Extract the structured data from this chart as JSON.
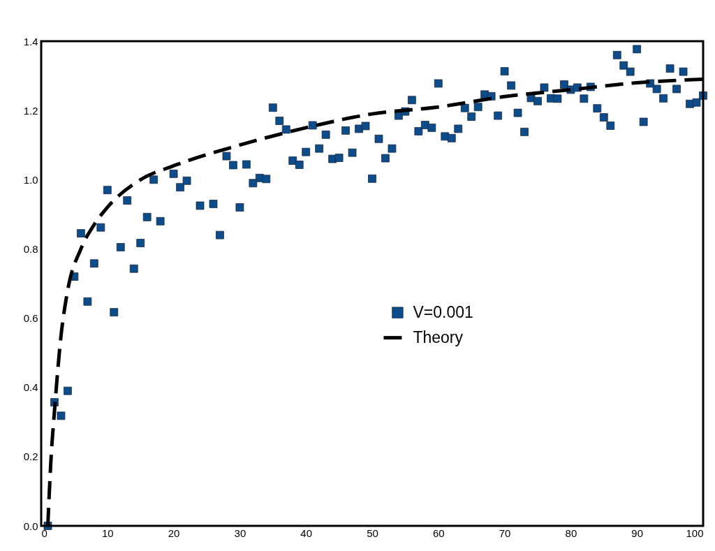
{
  "chart_data": {
    "type": "scatter",
    "xlim": [
      0,
      100
    ],
    "ylim": [
      0,
      1.4
    ],
    "xticks": [
      0,
      10,
      20,
      30,
      40,
      50,
      60,
      70,
      80,
      90,
      100
    ],
    "yticks": [
      {
        "value": 0,
        "label": "0.0"
      },
      {
        "value": 0.2,
        "label": "0.2"
      },
      {
        "value": 0.4,
        "label": "0.4"
      },
      {
        "value": 0.6,
        "label": "0.6"
      },
      {
        "value": 0.8,
        "label": "0.8"
      },
      {
        "value": 1,
        "label": "1.0"
      },
      {
        "value": 1.2,
        "label": "1.2"
      },
      {
        "value": 1.4,
        "label": "1.4"
      }
    ],
    "grid": false,
    "legend": "right",
    "series": [
      {
        "name": "V=0.001",
        "color": "#0d4c8b",
        "marker": "square",
        "x": [
          1,
          2,
          3,
          4,
          5,
          6,
          7,
          8,
          9,
          10,
          11,
          12,
          13,
          14,
          15,
          16,
          17,
          18,
          20,
          21,
          22,
          24,
          26,
          27,
          28,
          29,
          30,
          31,
          32,
          33,
          34,
          35,
          36,
          37,
          38,
          39,
          40,
          41,
          42,
          43,
          44,
          45,
          46,
          47,
          48,
          49,
          50,
          51,
          52,
          53,
          54,
          55,
          56,
          57,
          58,
          59,
          60,
          61,
          62,
          63,
          64,
          65,
          66,
          67,
          68,
          69,
          70,
          71,
          72,
          73,
          74,
          75,
          76,
          77,
          78,
          79,
          80,
          81,
          82,
          83,
          84,
          85,
          86,
          87,
          88,
          89,
          90,
          91,
          92,
          93,
          94,
          95,
          96,
          97,
          98,
          99,
          100
        ],
        "values": [
          0.0,
          0.357,
          0.318,
          0.39,
          0.72,
          0.845,
          0.648,
          0.758,
          0.862,
          0.97,
          0.617,
          0.805,
          0.94,
          0.743,
          0.817,
          0.892,
          1.0,
          0.88,
          1.017,
          0.978,
          0.997,
          0.925,
          0.93,
          0.84,
          1.068,
          1.042,
          0.92,
          1.044,
          0.99,
          1.005,
          1.002,
          1.208,
          1.17,
          1.145,
          1.055,
          1.043,
          1.08,
          1.157,
          1.09,
          1.13,
          1.06,
          1.063,
          1.142,
          1.078,
          1.147,
          1.155,
          1.003,
          1.118,
          1.062,
          1.09,
          1.185,
          1.197,
          1.23,
          1.14,
          1.158,
          1.15,
          1.278,
          1.125,
          1.12,
          1.147,
          1.207,
          1.182,
          1.21,
          1.246,
          1.241,
          1.185,
          1.313,
          1.272,
          1.193,
          1.138,
          1.236,
          1.227,
          1.266,
          1.235,
          1.234,
          1.275,
          1.26,
          1.266,
          1.234,
          1.268,
          1.206,
          1.18,
          1.156,
          1.36,
          1.33,
          1.312,
          1.377,
          1.167,
          1.278,
          1.262,
          1.235,
          1.321,
          1.262,
          1.312,
          1.219,
          1.223,
          1.243
        ]
      },
      {
        "name": "Theory",
        "type": "line",
        "color": "#000000",
        "line_style": "dashed",
        "marker": "none",
        "x": [
          1,
          1.5,
          2,
          3,
          4,
          6,
          8,
          10,
          15,
          20,
          30,
          40,
          50,
          60,
          70,
          80,
          90,
          100
        ],
        "values": [
          0,
          0.2,
          0.33,
          0.55,
          0.68,
          0.8,
          0.87,
          0.92,
          1.0,
          1.04,
          1.1,
          1.15,
          1.19,
          1.21,
          1.24,
          1.26,
          1.28,
          1.29
        ]
      }
    ]
  }
}
